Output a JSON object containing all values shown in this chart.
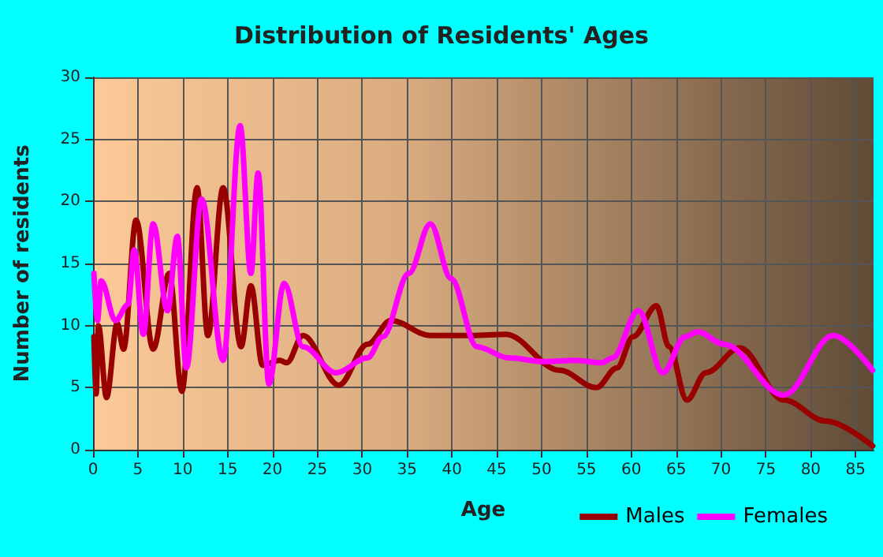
{
  "chart_data": {
    "type": "line",
    "title": "Distribution of Residents' Ages",
    "xlabel": "Age",
    "ylabel": "Number of residents",
    "xlim": [
      0,
      87
    ],
    "xticks": [
      0,
      5,
      10,
      15,
      20,
      25,
      30,
      35,
      40,
      45,
      50,
      55,
      60,
      65,
      70,
      75,
      80,
      85
    ],
    "ylim": [
      0,
      30
    ],
    "yticks": [
      0,
      5,
      10,
      15,
      20,
      25,
      30
    ],
    "grid": true,
    "legend": "bottom right",
    "marker": "none",
    "line_style": "solid",
    "series": [
      {
        "name": "Males",
        "color": "#990000",
        "x": [
          0.1,
          0.35,
          0.6,
          1.5,
          2.7,
          3.4,
          4.8,
          6.7,
          8.5,
          9.9,
          11.6,
          12.8,
          14.5,
          16.5,
          17.6,
          18.9,
          20.8,
          21.6,
          23.4,
          27.4,
          30.6,
          33.2,
          37.6,
          42.2,
          46,
          52,
          56.1,
          58.4,
          60.2,
          62.8,
          64.2,
          66.2,
          68.3,
          72.1,
          77,
          81.7,
          86.9
        ],
        "values": [
          9.1,
          4.5,
          10,
          4.2,
          10.2,
          8.1,
          18.5,
          8.1,
          14.2,
          4.7,
          21.1,
          9.2,
          21.1,
          8.3,
          13.2,
          6.8,
          7.2,
          7,
          9.2,
          5.2,
          8.5,
          10.4,
          9.2,
          9.2,
          9.3,
          6.4,
          5,
          6.6,
          9.1,
          11.6,
          8.3,
          4,
          6.2,
          8.2,
          4,
          2.3,
          0.3
        ]
      },
      {
        "name": "Females",
        "color": "#ff00ff",
        "x": [
          0.1,
          0.5,
          0.9,
          2.5,
          3.9,
          4.6,
          5.6,
          6.7,
          8.3,
          9.4,
          10.4,
          12.1,
          14.5,
          16.4,
          17.6,
          18.4,
          19.6,
          21.3,
          23.4,
          27.1,
          30.6,
          32.3,
          35.2,
          37.6,
          39.9,
          42.8,
          46.3,
          50.3,
          53.8,
          56.7,
          57.9,
          60.8,
          63.5,
          66,
          67.4,
          70.3,
          77,
          82.5,
          86.9
        ],
        "values": [
          14.2,
          10.4,
          13.6,
          10.4,
          11.7,
          16.1,
          9.3,
          18.2,
          11.2,
          17.2,
          6.6,
          20.2,
          7.2,
          26.1,
          14.2,
          22.3,
          5.3,
          13.4,
          8.3,
          6.2,
          7.4,
          9.1,
          14.2,
          18.2,
          13.8,
          8.3,
          7.4,
          7.1,
          7.2,
          7,
          7.4,
          11.2,
          6.2,
          9.1,
          9.5,
          8.5,
          4.4,
          9.2,
          6.4
        ]
      }
    ]
  }
}
